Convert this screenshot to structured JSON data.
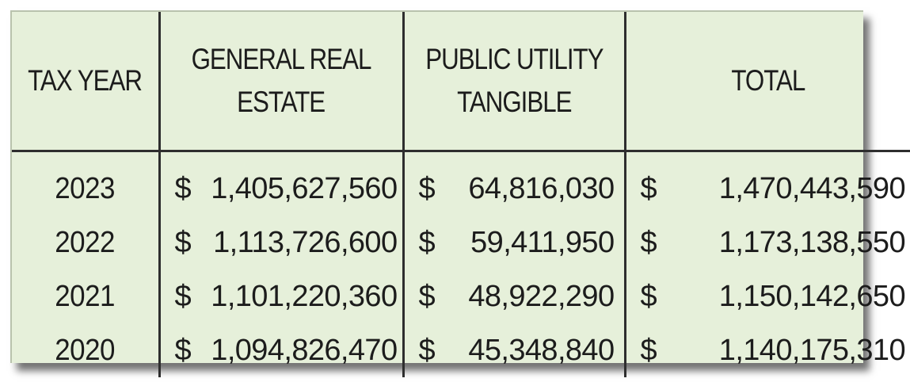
{
  "table": {
    "headers": {
      "tax_year": "TAX YEAR",
      "general_real_estate": [
        "GENERAL REAL",
        "ESTATE"
      ],
      "public_utility_tangible": [
        "PUBLIC UTILITY",
        "TANGIBLE"
      ],
      "total": "TOTAL"
    },
    "currency_symbol": "$",
    "rows": [
      {
        "year": "2023",
        "general_real_estate": "1,405,627,560",
        "public_utility_tangible": "64,816,030",
        "total": "1,470,443,590"
      },
      {
        "year": "2022",
        "general_real_estate": "1,113,726,600",
        "public_utility_tangible": "59,411,950",
        "total": "1,173,138,550"
      },
      {
        "year": "2021",
        "general_real_estate": "1,101,220,360",
        "public_utility_tangible": "48,922,290",
        "total": "1,150,142,650"
      },
      {
        "year": "2020",
        "general_real_estate": "1,094,826,470",
        "public_utility_tangible": "45,348,840",
        "total": "1,140,175,310"
      }
    ]
  },
  "colors": {
    "background": "#e6f0da",
    "grid_lines": "#2e2e2e",
    "text": "#1c1c1c"
  }
}
